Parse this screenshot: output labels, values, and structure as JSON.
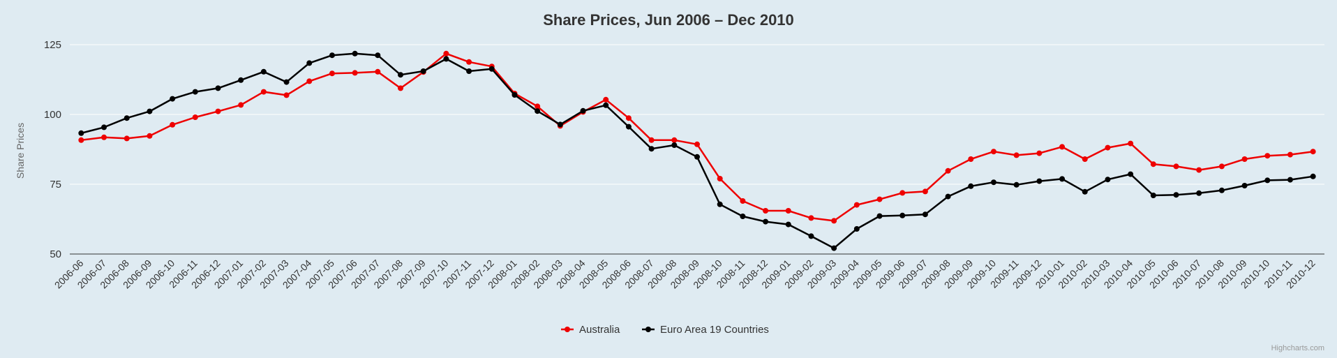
{
  "colors": {
    "background": "#dfebf2",
    "australia": "#ee0000",
    "euro_area": "#000000",
    "grid": "#ffffff",
    "axis_line": "#333333"
  },
  "credits": "Highcharts.com",
  "chart_data": {
    "type": "line",
    "title": "Share Prices, Jun 2006 – Dec 2010",
    "xlabel": "",
    "ylabel": "Share Prices",
    "ylim": [
      50,
      125
    ],
    "yticks": [
      50,
      75,
      100,
      125
    ],
    "grid": true,
    "legend_position": "bottom-center",
    "categories": [
      "2006-06",
      "2006-07",
      "2006-08",
      "2006-09",
      "2006-10",
      "2006-11",
      "2006-12",
      "2007-01",
      "2007-02",
      "2007-03",
      "2007-04",
      "2007-05",
      "2007-06",
      "2007-07",
      "2007-08",
      "2007-09",
      "2007-10",
      "2007-11",
      "2007-12",
      "2008-01",
      "2008-02",
      "2008-03",
      "2008-04",
      "2008-05",
      "2008-06",
      "2008-07",
      "2008-08",
      "2008-09",
      "2008-10",
      "2008-11",
      "2008-12",
      "2009-01",
      "2009-02",
      "2009-03",
      "2009-04",
      "2009-05",
      "2009-06",
      "2009-07",
      "2009-08",
      "2009-09",
      "2009-10",
      "2009-11",
      "2009-12",
      "2010-01",
      "2010-02",
      "2010-03",
      "2010-04",
      "2010-05",
      "2010-06",
      "2010-07",
      "2010-08",
      "2010-09",
      "2010-10",
      "2010-11",
      "2010-12"
    ],
    "series": [
      {
        "name": "Australia",
        "color": "#ee0000",
        "values": [
          90.8,
          91.8,
          91.4,
          92.3,
          96.3,
          99.0,
          101.1,
          103.4,
          108.1,
          106.9,
          111.9,
          114.7,
          114.9,
          115.3,
          109.4,
          115.2,
          121.8,
          118.8,
          117.2,
          107.5,
          102.9,
          95.9,
          100.9,
          105.3,
          98.7,
          90.8,
          90.8,
          89.3,
          77.0,
          69.0,
          65.5,
          65.5,
          62.9,
          61.9,
          67.6,
          69.6,
          71.9,
          72.4,
          79.8,
          84.0,
          86.7,
          85.4,
          86.1,
          88.4,
          84.0,
          88.1,
          89.6,
          82.2,
          81.4,
          80.1,
          81.4,
          84.0,
          85.2,
          85.6,
          86.7
        ]
      },
      {
        "name": "Euro Area 19 Countries",
        "color": "#000000",
        "values": [
          93.3,
          95.4,
          98.7,
          101.1,
          105.6,
          108.1,
          109.4,
          112.3,
          115.3,
          111.6,
          118.4,
          121.2,
          121.8,
          121.2,
          114.2,
          115.5,
          119.9,
          115.5,
          116.3,
          107.0,
          101.2,
          96.4,
          101.3,
          103.3,
          95.6,
          87.7,
          89.0,
          84.8,
          67.8,
          63.5,
          61.6,
          60.6,
          56.4,
          52.1,
          59.0,
          63.6,
          63.8,
          64.2,
          70.6,
          74.3,
          75.7,
          74.8,
          76.1,
          76.9,
          72.3,
          76.7,
          78.6,
          71.0,
          71.2,
          71.8,
          72.8,
          74.5,
          76.4,
          76.6,
          77.8
        ]
      }
    ]
  }
}
